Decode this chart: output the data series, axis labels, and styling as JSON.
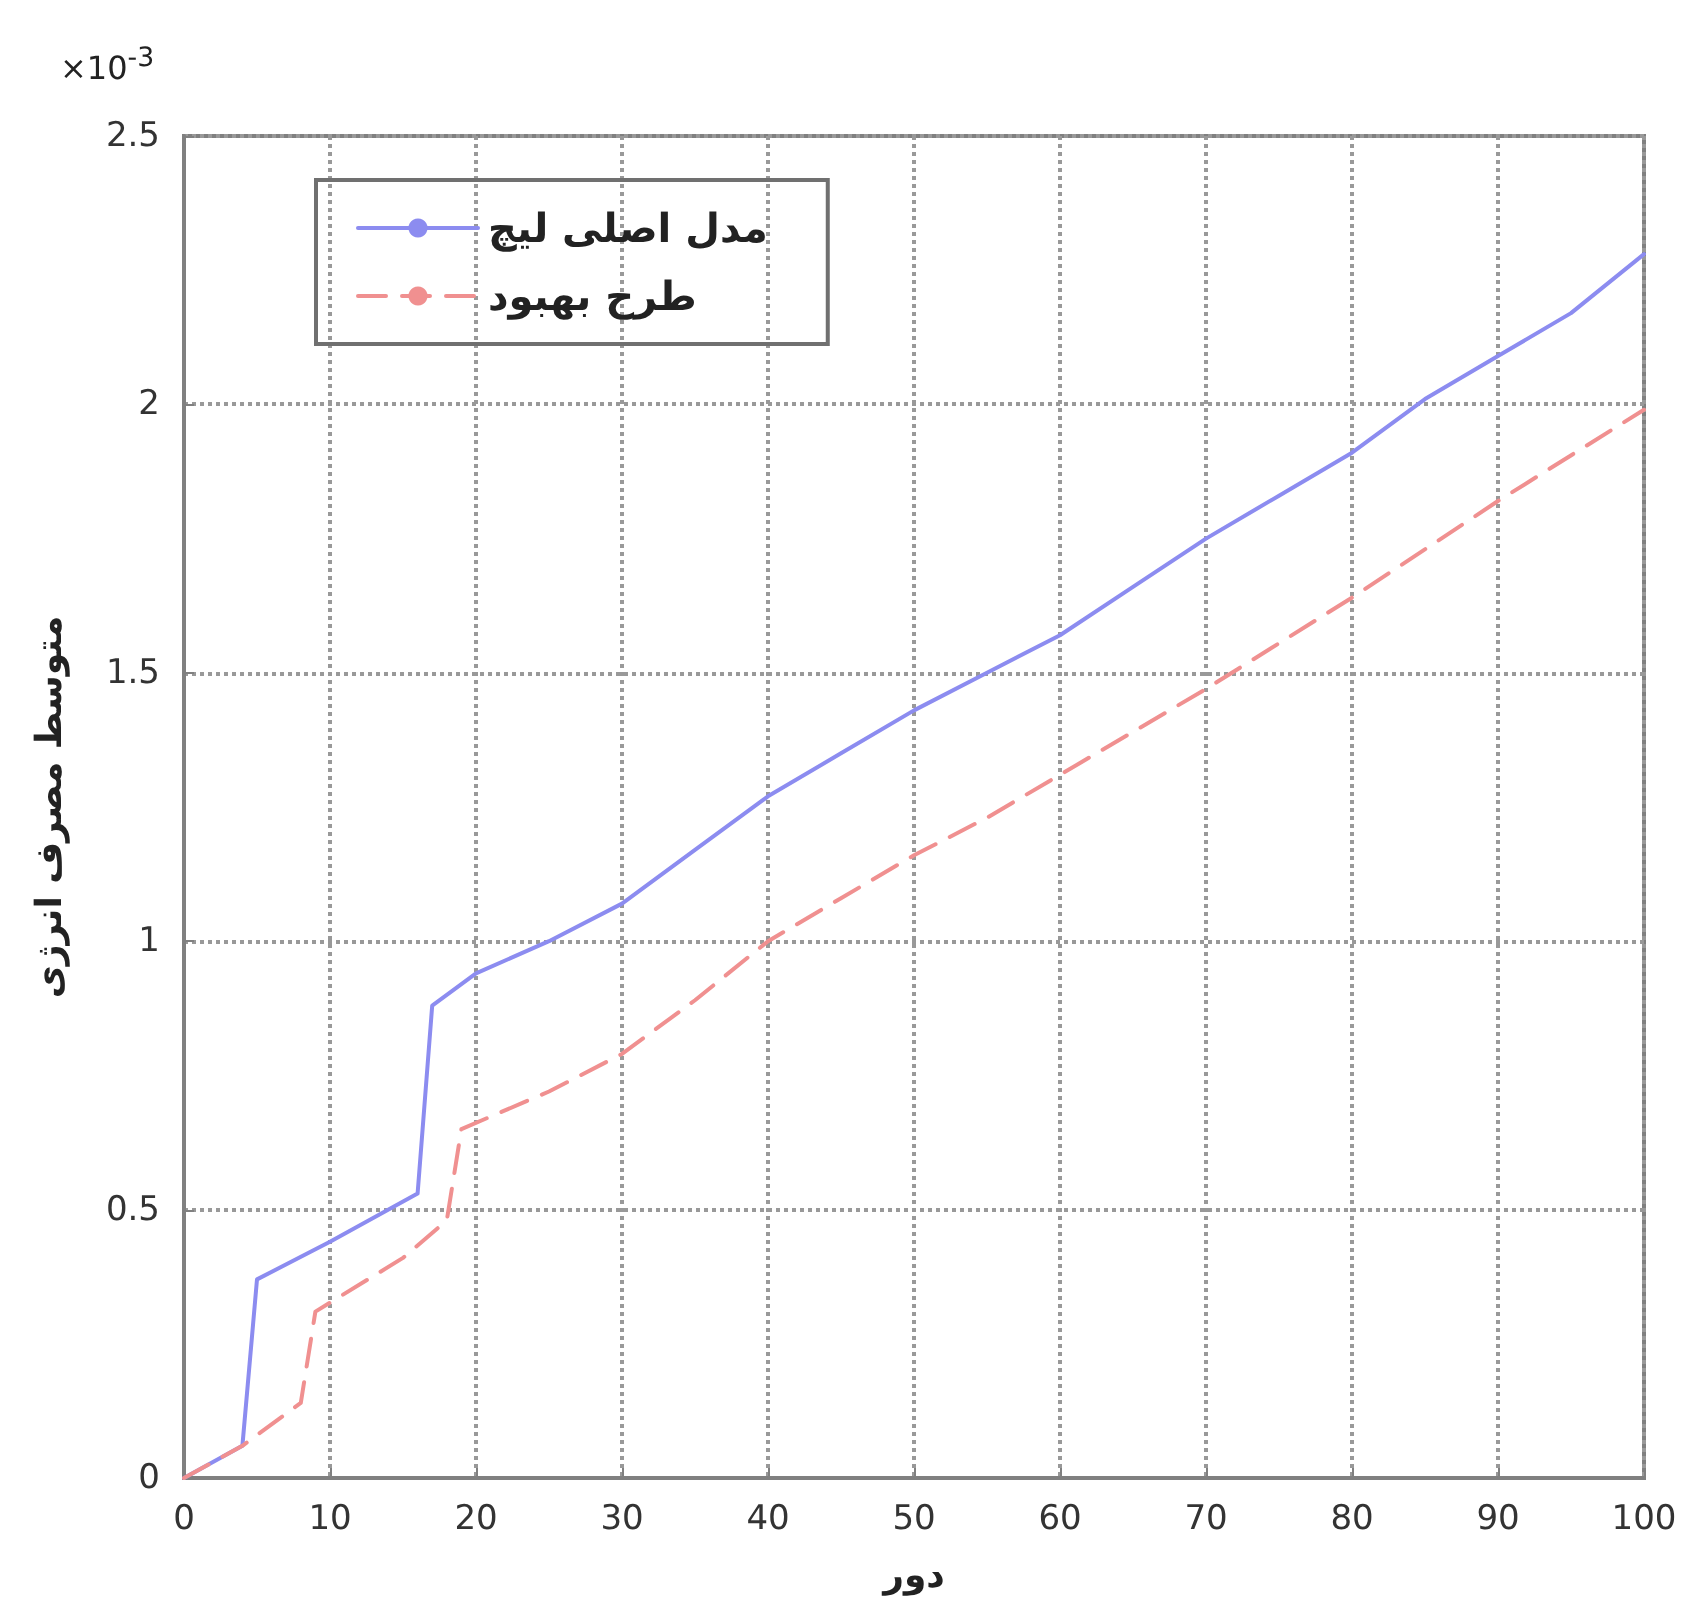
{
  "chart_data": {
    "type": "line",
    "xlabel": "دور",
    "ylabel": "متوسط مصرف انرژی",
    "annotations": [
      "×10$^{-3}$"
    ],
    "xlim": [
      0,
      100
    ],
    "xticks": [
      0,
      10,
      20,
      30,
      40,
      50,
      60,
      70,
      80,
      90,
      100
    ],
    "ylim": [
      0,
      2.5
    ],
    "yticks": [
      0,
      0.5,
      1,
      1.5,
      2,
      2.5
    ],
    "grid": true,
    "legend": "top left",
    "marker": "none",
    "series": [
      {
        "name": "مدل اصلی لیچ",
        "color": "#8c8cf0",
        "line_style": "solid",
        "x": [
          0,
          4,
          5,
          10,
          16,
          17,
          20,
          25,
          30,
          35,
          40,
          45,
          50,
          55,
          60,
          65,
          70,
          75,
          80,
          85,
          90,
          95,
          100
        ],
        "values": [
          0,
          0.06,
          0.37,
          0.44,
          0.53,
          0.88,
          0.94,
          1.0,
          1.07,
          1.17,
          1.27,
          1.35,
          1.43,
          1.5,
          1.57,
          1.66,
          1.75,
          1.83,
          1.91,
          2.01,
          2.09,
          2.17,
          2.28
        ]
      },
      {
        "name": "طرح بهبود",
        "color": "#f09090",
        "line_style": "dashed",
        "x": [
          0,
          4,
          8,
          9,
          15,
          18,
          19,
          25,
          30,
          35,
          40,
          45,
          50,
          55,
          60,
          70,
          80,
          90,
          100
        ],
        "values": [
          0,
          0.06,
          0.14,
          0.31,
          0.41,
          0.48,
          0.65,
          0.72,
          0.79,
          0.89,
          1.0,
          1.08,
          1.16,
          1.23,
          1.31,
          1.47,
          1.64,
          1.82,
          1.99
        ]
      }
    ]
  }
}
